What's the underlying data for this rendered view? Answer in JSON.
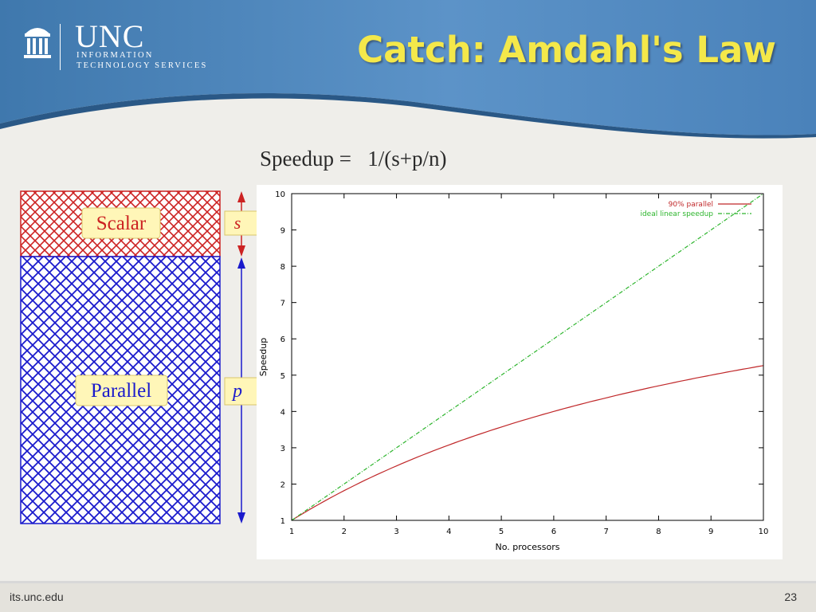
{
  "logo": {
    "wordmark": "UNC",
    "line1": "INFORMATION",
    "line2": "TECHNOLOGY SERVICES"
  },
  "slide": {
    "title": "Catch: Amdahl's Law",
    "formula": "Speedup =   1/(s+p/n)"
  },
  "diagram": {
    "scalar_label": "Scalar",
    "parallel_label": "Parallel",
    "s_label": "s",
    "p_label": "p",
    "scalar_color": "#cc2222",
    "parallel_color": "#1a1acc"
  },
  "chart_data": {
    "type": "line",
    "xlabel": "No. processors",
    "ylabel": "Speedup",
    "xlim": [
      1,
      10
    ],
    "ylim": [
      1,
      10
    ],
    "xticks": [
      1,
      2,
      3,
      4,
      5,
      6,
      7,
      8,
      9,
      10
    ],
    "yticks": [
      1,
      2,
      3,
      4,
      5,
      6,
      7,
      8,
      9,
      10
    ],
    "legend_position": "top-right",
    "x": [
      1,
      2,
      3,
      4,
      5,
      6,
      7,
      8,
      9,
      10
    ],
    "series": [
      {
        "name": "90% parallel",
        "color": "#c0282a",
        "dash": "solid",
        "values": [
          1.0,
          1.82,
          2.5,
          3.08,
          3.57,
          4.0,
          4.38,
          4.71,
          5.0,
          5.26
        ]
      },
      {
        "name": "ideal linear speedup",
        "color": "#2db52d",
        "dash": "dashdot",
        "values": [
          1,
          2,
          3,
          4,
          5,
          6,
          7,
          8,
          9,
          10
        ]
      }
    ]
  },
  "footer": {
    "left": "its.unc.edu",
    "right": "23"
  }
}
